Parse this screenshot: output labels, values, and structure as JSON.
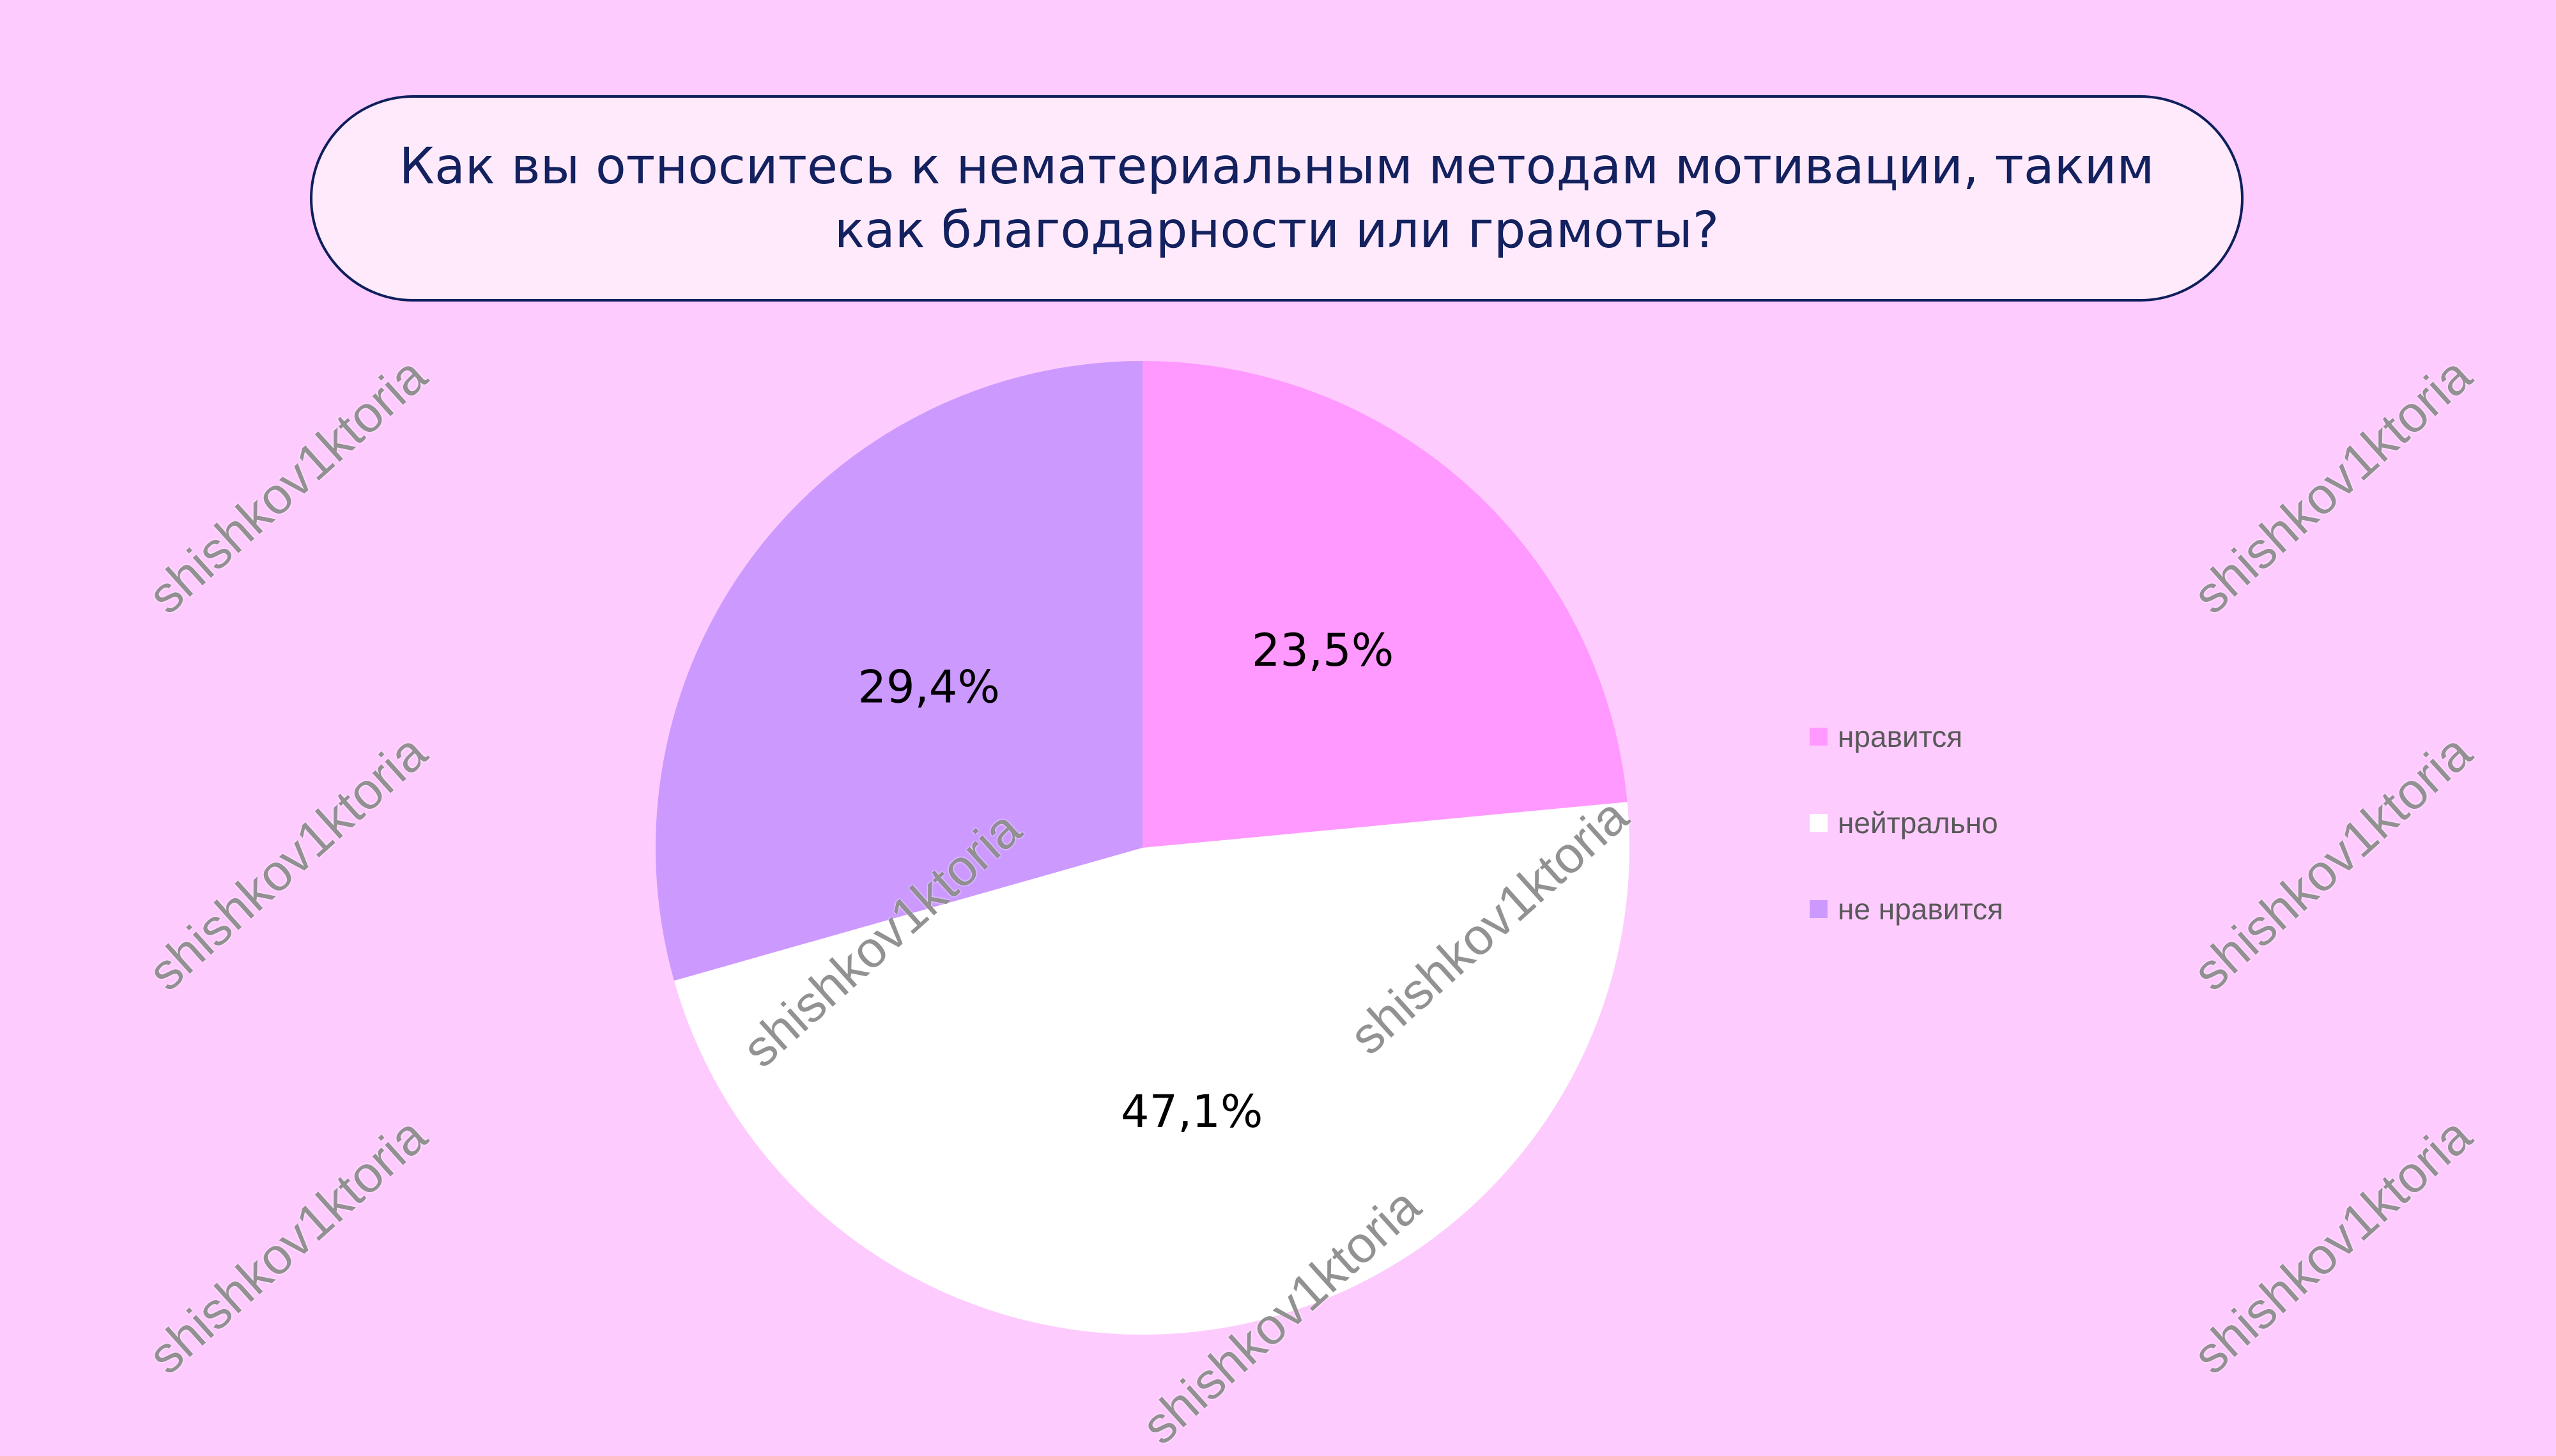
{
  "chart_data": {
    "type": "pie",
    "title": "Как вы относитесь к нематериальным методам мотивации, таким как благодарности или грамоты?",
    "categories": [
      "нравится",
      "нейтрально",
      "не нравится"
    ],
    "values": [
      23.5,
      47.1,
      29.4
    ],
    "data_labels": [
      "23,5%",
      "47,1%",
      "29,4%"
    ],
    "colors": [
      "#ff99ff",
      "#ffffff",
      "#cc99ff"
    ],
    "legend_position": "right",
    "start_angle": "top, clockwise"
  },
  "colors": {
    "background": "#fecbfe",
    "title_box": "#ffeafc",
    "title_text": "#13215e",
    "legend_text": "#595959"
  },
  "watermark": "shishkov1ktoria"
}
